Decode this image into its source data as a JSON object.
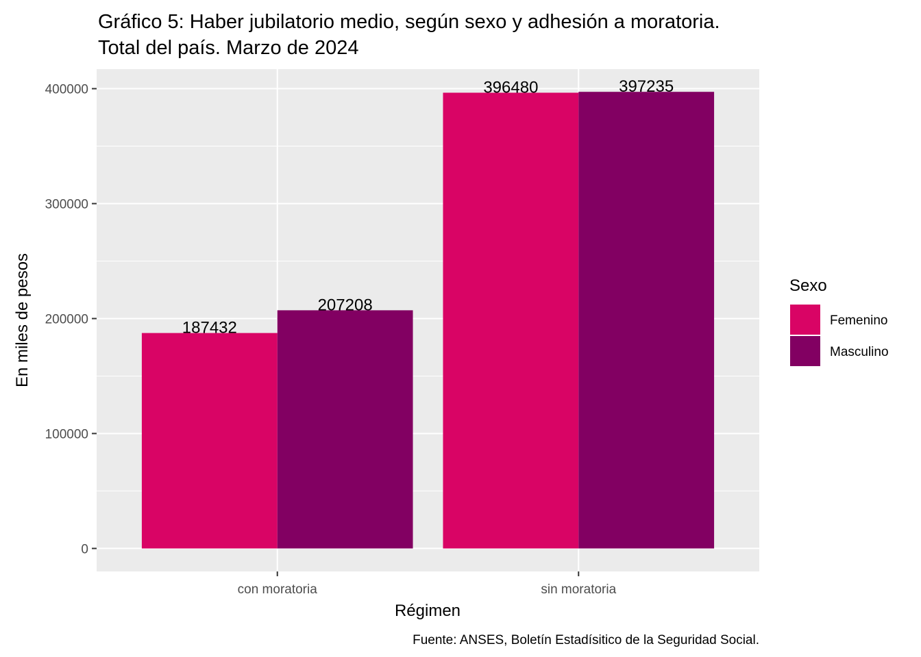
{
  "chart_data": {
    "type": "bar",
    "title": "Gráfico 5: Haber jubilatorio medio, según sexo y adhesión a moratoria.",
    "subtitle": "Total del país. Marzo de 2024",
    "xlabel": "Régimen",
    "ylabel": "En miles de pesos",
    "categories": [
      "con moratoria",
      "sin moratoria"
    ],
    "series": [
      {
        "name": "Femenino",
        "color": "#d90465",
        "values": [
          187432,
          396480
        ]
      },
      {
        "name": "Masculino",
        "color": "#820062",
        "values": [
          207208,
          397235
        ]
      }
    ],
    "ylim": [
      -20000,
      417000
    ],
    "yticks": [
      0,
      100000,
      200000,
      300000,
      400000
    ],
    "ytick_labels": [
      "0",
      "100000",
      "200000",
      "300000",
      "400000"
    ],
    "legend": {
      "title": "Sexo",
      "position": "right"
    },
    "caption": "Fuente: ANSES, Boletín Estadísitico de la Seguridad Social.",
    "grid": true,
    "panel_background": "#ebebeb"
  }
}
